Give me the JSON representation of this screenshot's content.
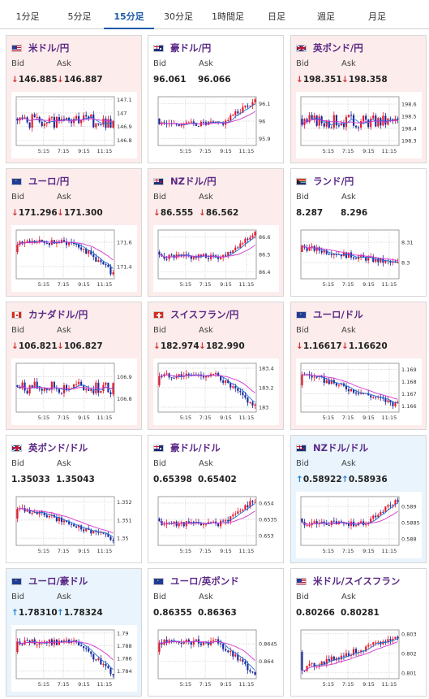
{
  "tabs": [
    {
      "label": "1分足",
      "active": false
    },
    {
      "label": "5分足",
      "active": false
    },
    {
      "label": "15分足",
      "active": true
    },
    {
      "label": "30分足",
      "active": false
    },
    {
      "label": "1時間足",
      "active": false
    },
    {
      "label": "日足",
      "active": false
    },
    {
      "label": "週足",
      "active": false
    },
    {
      "label": "月足",
      "active": false
    }
  ],
  "labels": {
    "bid": "Bid",
    "ask": "Ask"
  },
  "colors": {
    "candle_up": "#e8182a",
    "candle_down": "#1a2a9c",
    "ma_short": "#1e6fd9",
    "ma_long": "#d534d0"
  },
  "cards": [
    {
      "pair": "米ドル/円",
      "flag": "us-flag-icon",
      "direction": "down",
      "bid": "146.885",
      "ask": "146.887",
      "chart": {
        "x_ticks": [
          "5:15",
          "7:15",
          "9:15",
          "11:15"
        ],
        "y_ticks": [
          "147.1",
          "147",
          "146.9",
          "146.8"
        ],
        "ylim": [
          146.76,
          147.12
        ],
        "trend": "flat-volatile"
      }
    },
    {
      "pair": "豪ドル/円",
      "flag": "au-flag-icon",
      "direction": "neutral",
      "bid": "96.061",
      "ask": "96.066",
      "chart": {
        "x_ticks": [
          "5:15",
          "7:15",
          "9:15",
          "11:15"
        ],
        "y_ticks": [
          "96.1",
          "96",
          "95.9"
        ],
        "ylim": [
          95.86,
          96.14
        ],
        "trend": "rising-end"
      }
    },
    {
      "pair": "英ポンド/円",
      "flag": "gb-flag-icon",
      "direction": "down",
      "bid": "198.351",
      "ask": "198.358",
      "chart": {
        "x_ticks": [
          "5:15",
          "7:15",
          "9:15",
          "11:15"
        ],
        "y_ticks": [
          "198.6",
          "198.5",
          "198.4",
          "198.3"
        ],
        "ylim": [
          198.26,
          198.66
        ],
        "trend": "flat-volatile"
      }
    },
    {
      "pair": "ユーロ/円",
      "flag": "eu-flag-icon",
      "direction": "down",
      "bid": "171.296",
      "ask": "171.300",
      "chart": {
        "x_ticks": [
          "5:15",
          "7:15",
          "9:15",
          "11:15"
        ],
        "y_ticks": [
          "171.6",
          "171.4"
        ],
        "ylim": [
          171.3,
          171.7
        ],
        "trend": "falling-end"
      }
    },
    {
      "pair": "NZドル/円",
      "flag": "nz-flag-icon",
      "direction": "down",
      "bid": "86.555",
      "ask": "86.562",
      "chart": {
        "x_ticks": [
          "5:15",
          "7:15",
          "9:15",
          "11:15"
        ],
        "y_ticks": [
          "86.6",
          "86.5",
          "86.4"
        ],
        "ylim": [
          86.36,
          86.64
        ],
        "trend": "rising-end"
      }
    },
    {
      "pair": "ランド/円",
      "flag": "za-flag-icon",
      "direction": "neutral",
      "bid": "8.287",
      "ask": "8.296",
      "chart": {
        "x_ticks": [
          "5:15",
          "7:15",
          "9:15",
          "11:15"
        ],
        "y_ticks": [
          "8.31",
          "8.3"
        ],
        "ylim": [
          8.292,
          8.316
        ],
        "trend": "flat-falling"
      }
    },
    {
      "pair": "カナダドル/円",
      "flag": "ca-flag-icon",
      "direction": "down",
      "bid": "106.821",
      "ask": "106.827",
      "chart": {
        "x_ticks": [
          "5:15",
          "7:15",
          "9:15",
          "11:15"
        ],
        "y_ticks": [
          "106.9",
          "106.8"
        ],
        "ylim": [
          106.74,
          106.96
        ],
        "trend": "flat-volatile"
      }
    },
    {
      "pair": "スイスフラン/円",
      "flag": "ch-flag-icon",
      "direction": "down",
      "bid": "182.974",
      "ask": "182.990",
      "chart": {
        "x_ticks": [
          "5:15",
          "7:15",
          "9:15",
          "11:15"
        ],
        "y_ticks": [
          "183.4",
          "183.2",
          "183"
        ],
        "ylim": [
          182.95,
          183.45
        ],
        "trend": "falling-end"
      }
    },
    {
      "pair": "ユーロ/ドル",
      "flag": "eu-flag-icon",
      "direction": "down",
      "bid": "1.16617",
      "ask": "1.16620",
      "chart": {
        "x_ticks": [
          "5:15",
          "7:15",
          "9:15",
          "11:15"
        ],
        "y_ticks": [
          "1.169",
          "1.168",
          "1.167",
          "1.166"
        ],
        "ylim": [
          1.1655,
          1.1695
        ],
        "trend": "falling"
      }
    },
    {
      "pair": "英ポンド/ドル",
      "flag": "gb-flag-icon",
      "direction": "neutral",
      "bid": "1.35033",
      "ask": "1.35043",
      "chart": {
        "x_ticks": [
          "5:15",
          "7:15",
          "9:15",
          "11:15"
        ],
        "y_ticks": [
          "1.352",
          "1.351",
          "1.35"
        ],
        "ylim": [
          1.3496,
          1.3523
        ],
        "trend": "falling"
      }
    },
    {
      "pair": "豪ドル/ドル",
      "flag": "au-flag-icon",
      "direction": "neutral",
      "bid": "0.65398",
      "ask": "0.65402",
      "chart": {
        "x_ticks": [
          "5:15",
          "7:15",
          "9:15",
          "11:15"
        ],
        "y_ticks": [
          "0.654",
          "0.6535",
          "0.653"
        ],
        "ylim": [
          0.6527,
          0.6542
        ],
        "trend": "rising-end"
      }
    },
    {
      "pair": "NZドル/ドル",
      "flag": "nz-flag-icon",
      "direction": "up",
      "bid": "0.58922",
      "ask": "0.58936",
      "chart": {
        "x_ticks": [
          "5:15",
          "7:15",
          "9:15",
          "11:15"
        ],
        "y_ticks": [
          "0.589",
          "0.5885",
          "0.588"
        ],
        "ylim": [
          0.5878,
          0.5893
        ],
        "trend": "rising-end"
      }
    },
    {
      "pair": "ユーロ/豪ドル",
      "flag": "eu-flag-icon",
      "direction": "up",
      "bid": "1.78310",
      "ask": "1.78324",
      "chart": {
        "x_ticks": [
          "5:15",
          "7:15",
          "9:15",
          "11:15"
        ],
        "y_ticks": [
          "1.79",
          "1.788",
          "1.786",
          "1.784"
        ],
        "ylim": [
          1.7828,
          1.7905
        ],
        "trend": "falling-end"
      }
    },
    {
      "pair": "ユーロ/英ポンド",
      "flag": "eu-flag-icon",
      "direction": "neutral",
      "bid": "0.86355",
      "ask": "0.86363",
      "chart": {
        "x_ticks": [
          "5:15",
          "7:15",
          "9:15",
          "11:15"
        ],
        "y_ticks": [
          "0.8645",
          "0.864"
        ],
        "ylim": [
          0.8635,
          0.8649
        ],
        "trend": "falling-end"
      }
    },
    {
      "pair": "米ドル/スイスフラン",
      "flag": "us-flag-icon",
      "direction": "neutral",
      "bid": "0.80266",
      "ask": "0.80281",
      "chart": {
        "x_ticks": [
          "5:15",
          "7:15",
          "9:15",
          "11:15"
        ],
        "y_ticks": [
          "0.803",
          "0.802",
          "0.801"
        ],
        "ylim": [
          0.8007,
          0.8032
        ],
        "trend": "rising"
      }
    }
  ]
}
